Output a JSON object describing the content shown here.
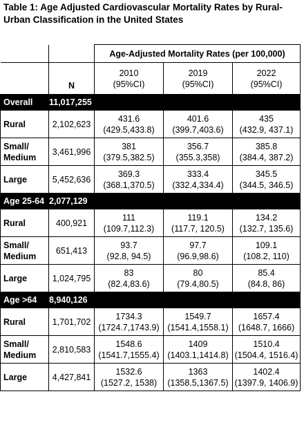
{
  "title": "Table 1: Age Adjusted Cardiovascular Mortality Rates by Rural-Urban Classification in the United States",
  "header": {
    "span_label": "Age-Adjusted Mortality Rates (per 100,000)",
    "n_label": "N",
    "years": [
      {
        "year": "2010",
        "ci": "(95%CI)"
      },
      {
        "year": "2019",
        "ci": "(95%CI)"
      },
      {
        "year": "2022",
        "ci": "(95%CI)"
      }
    ]
  },
  "groups": [
    {
      "label": "Overall",
      "n": "11,017,255",
      "rows": [
        {
          "label": "Rural",
          "n": "2,102,623",
          "cells": [
            {
              "rate": "431.6",
              "ci": "(429.5,433.8)"
            },
            {
              "rate": "401.6",
              "ci": "(399.7,403.6)"
            },
            {
              "rate": "435",
              "ci": "(432.9, 437.1)"
            }
          ]
        },
        {
          "label": "Small/ Medium",
          "n": "3,461,996",
          "cells": [
            {
              "rate": "381",
              "ci": "(379.5,382.5)"
            },
            {
              "rate": "356.7",
              "ci": "(355.3,358)"
            },
            {
              "rate": "385.8",
              "ci": "(384.4, 387.2)"
            }
          ]
        },
        {
          "label": "Large",
          "n": "5,452,636",
          "cells": [
            {
              "rate": "369.3",
              "ci": "(368.1,370.5)"
            },
            {
              "rate": "333.4",
              "ci": "(332.4,334.4)"
            },
            {
              "rate": "345.5",
              "ci": "(344.5, 346.5)"
            }
          ]
        }
      ]
    },
    {
      "label": "Age 25-64",
      "n": "2,077,129",
      "rows": [
        {
          "label": "Rural",
          "n": "400,921",
          "cells": [
            {
              "rate": "111",
              "ci": "(109.7,112.3)"
            },
            {
              "rate": "119.1",
              "ci": "(117.7, 120.5)"
            },
            {
              "rate": "134.2",
              "ci": "(132.7, 135.6)"
            }
          ]
        },
        {
          "label": "Small/ Medium",
          "n": "651,413",
          "cells": [
            {
              "rate": "93.7",
              "ci": "(92.8, 94.5)"
            },
            {
              "rate": "97.7",
              "ci": "(96.9,98.6)"
            },
            {
              "rate": "109.1",
              "ci": "(108.2, 110)"
            }
          ]
        },
        {
          "label": "Large",
          "n": "1,024,795",
          "cells": [
            {
              "rate": "83",
              "ci": "(82.4,83.6)"
            },
            {
              "rate": "80",
              "ci": "(79.4,80.5)"
            },
            {
              "rate": "85.4",
              "ci": "(84.8, 86)"
            }
          ]
        }
      ]
    },
    {
      "label": "Age >64",
      "n": "8,940,126",
      "rows": [
        {
          "label": "Rural",
          "n": "1,701,702",
          "cells": [
            {
              "rate": "1734.3",
              "ci": "(1724.7,1743.9)"
            },
            {
              "rate": "1549.7",
              "ci": "(1541.4,1558.1)"
            },
            {
              "rate": "1657.4",
              "ci": "(1648.7, 1666)"
            }
          ]
        },
        {
          "label": "Small/ Medium",
          "n": "2,810,583",
          "cells": [
            {
              "rate": "1548.6",
              "ci": "(1541.7,1555.4)"
            },
            {
              "rate": "1409",
              "ci": "(1403.1,1414.8)"
            },
            {
              "rate": "1510.4",
              "ci": "(1504.4, 1516.4)"
            }
          ]
        },
        {
          "label": "Large",
          "n": "4,427,841",
          "cells": [
            {
              "rate": "1532.6",
              "ci": "(1527.2, 1538)"
            },
            {
              "rate": "1363",
              "ci": "(1358.5,1367.5)"
            },
            {
              "rate": "1402.4",
              "ci": "(1397.9, 1406.9)"
            }
          ]
        }
      ]
    }
  ]
}
